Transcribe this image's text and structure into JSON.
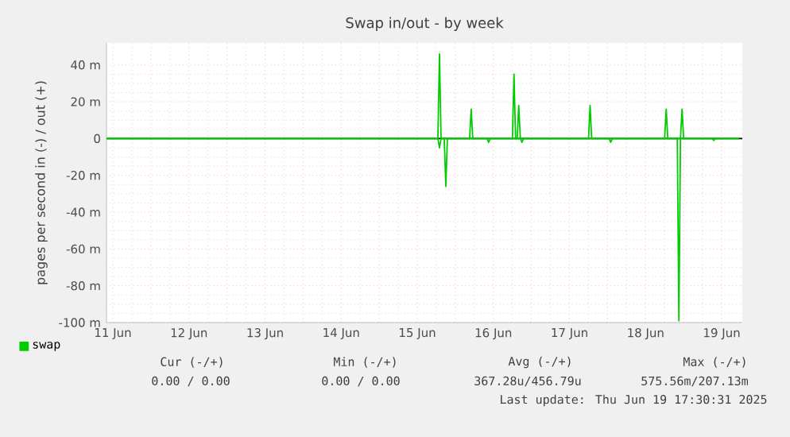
{
  "chart_data": {
    "type": "line",
    "title": "Swap in/out - by week",
    "ylabel": "pages per second in (-) / out (+)",
    "xlim": [
      "2025-06-11T10:00",
      "2025-06-19T18:30"
    ],
    "xticks": [
      {
        "value": "2025-06-11T12:00",
        "label": "11 Jun"
      },
      {
        "value": "2025-06-12T00:00",
        "label": null
      },
      {
        "value": "2025-06-12T12:00",
        "label": "12 Jun"
      },
      {
        "value": "2025-06-13T00:00",
        "label": null
      },
      {
        "value": "2025-06-13T12:00",
        "label": "13 Jun"
      },
      {
        "value": "2025-06-14T00:00",
        "label": null
      },
      {
        "value": "2025-06-14T12:00",
        "label": "14 Jun"
      },
      {
        "value": "2025-06-15T00:00",
        "label": null
      },
      {
        "value": "2025-06-15T12:00",
        "label": "15 Jun"
      },
      {
        "value": "2025-06-16T00:00",
        "label": null
      },
      {
        "value": "2025-06-16T12:00",
        "label": "16 Jun"
      },
      {
        "value": "2025-06-17T00:00",
        "label": null
      },
      {
        "value": "2025-06-17T12:00",
        "label": "17 Jun"
      },
      {
        "value": "2025-06-18T00:00",
        "label": null
      },
      {
        "value": "2025-06-18T12:00",
        "label": "18 Jun"
      },
      {
        "value": "2025-06-19T00:00",
        "label": null
      },
      {
        "value": "2025-06-19T12:00",
        "label": "19 Jun"
      }
    ],
    "ylim": [
      -100,
      52
    ],
    "yticks": [
      {
        "value": -100,
        "label": "-100 m"
      },
      {
        "value": -80,
        "label": "-80 m"
      },
      {
        "value": -60,
        "label": "-60 m"
      },
      {
        "value": -40,
        "label": "-40 m"
      },
      {
        "value": -20,
        "label": "-20 m"
      },
      0,
      {
        "value": 20,
        "label": "20 m"
      },
      {
        "value": 40,
        "label": "40 m"
      }
    ],
    "grid": true,
    "legend": "bottom left",
    "marker": "none",
    "line_style": "solid",
    "ref_lines": [
      {
        "axis": "y",
        "value": 0,
        "color": "#000000"
      }
    ],
    "series": [
      {
        "name": "swap",
        "color": "#00cc00",
        "x": [
          "2025-06-11T10:00",
          "2025-06-15T18:30",
          "2025-06-15T19:00",
          "2025-06-15T19:30",
          "2025-06-16T04:30",
          "2025-06-16T05:00",
          "2025-06-16T05:30",
          "2025-06-16T18:00",
          "2025-06-16T18:30",
          "2025-06-16T19:00",
          "2025-06-16T19:30",
          "2025-06-16T20:00",
          "2025-06-16T20:30",
          "2025-06-17T18:00",
          "2025-06-17T18:30",
          "2025-06-17T19:00",
          "2025-06-18T18:00",
          "2025-06-18T18:30",
          "2025-06-18T19:00",
          "2025-06-18T23:00",
          "2025-06-18T23:30",
          "2025-06-19T00:00",
          "2025-06-19T17:30"
        ],
        "values": [
          0,
          0,
          46,
          0,
          0,
          16,
          0,
          0,
          35,
          0,
          0,
          18,
          0,
          0,
          18,
          0,
          0,
          16,
          0,
          0,
          16,
          0,
          0
        ]
      },
      {
        "color": "#00cc00",
        "x": [
          "2025-06-11T10:00",
          "2025-06-15T18:30",
          "2025-06-15T19:00",
          "2025-06-15T19:30",
          "2025-06-15T20:30",
          "2025-06-15T21:00",
          "2025-06-15T21:30",
          "2025-06-16T10:00",
          "2025-06-16T10:30",
          "2025-06-16T11:00",
          "2025-06-16T20:30",
          "2025-06-16T21:00",
          "2025-06-16T21:30",
          "2025-06-18T00:30",
          "2025-06-18T01:00",
          "2025-06-18T01:30",
          "2025-06-18T22:00",
          "2025-06-18T22:30",
          "2025-06-18T23:00",
          "2025-06-19T09:00",
          "2025-06-19T09:30",
          "2025-06-19T10:00",
          "2025-06-19T17:30"
        ],
        "values": [
          0,
          0,
          -5,
          0,
          0,
          -26,
          0,
          0,
          -2,
          0,
          0,
          -2,
          0,
          0,
          -2,
          0,
          0,
          -99,
          0,
          0,
          -1,
          0,
          0
        ]
      }
    ],
    "annotations": [
      "Cur (-/+)",
      "Min (-/+)",
      "Avg (-/+)",
      "Max (-/+)",
      "0.00 / 0.00",
      "0.00 / 0.00",
      "367.28u/456.79u",
      "575.56m/207.13m",
      "Last update: Thu Jun 19 17:30:31 2025"
    ]
  }
}
